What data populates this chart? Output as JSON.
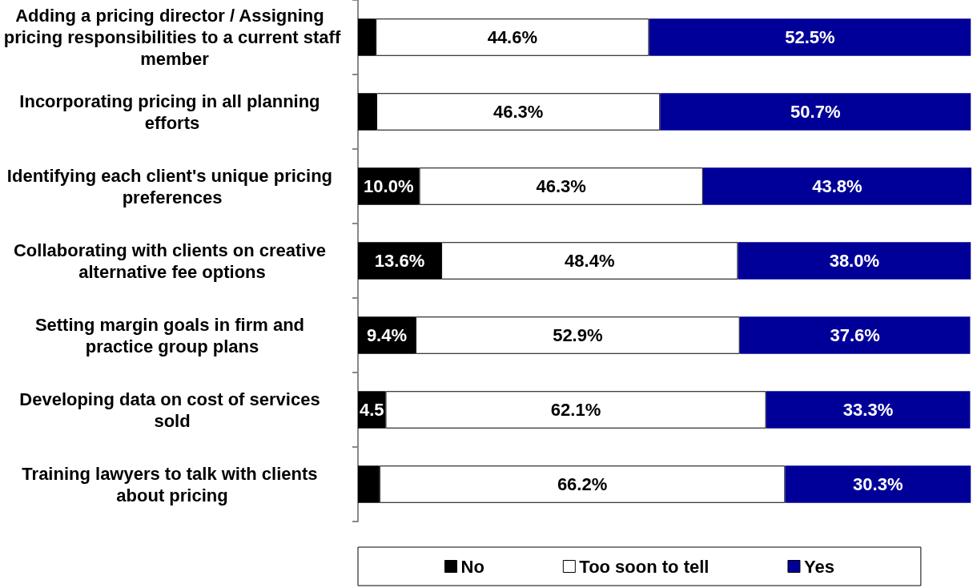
{
  "chart_data": {
    "type": "bar",
    "orientation": "horizontal",
    "stacked": true,
    "categories": [
      "Adding a pricing director / Assigning pricing responsibilities to a current staff member",
      "Incorporating pricing in all planning efforts",
      "Identifying each client's unique pricing preferences",
      "Collaborating with clients on creative alternative fee options",
      "Setting margin goals in firm and practice group plans",
      "Developing data on cost of services sold",
      "Training lawyers to talk with clients about pricing"
    ],
    "series": [
      {
        "name": "No",
        "color": "#000000",
        "values": [
          2.9,
          3.0,
          10.0,
          13.6,
          9.4,
          4.5,
          3.5
        ],
        "value_labels": [
          null,
          null,
          "10.0%",
          "13.6%",
          "9.4%",
          "4.5",
          null
        ]
      },
      {
        "name": "Too soon to tell",
        "color": "#ffffff",
        "values": [
          44.6,
          46.3,
          46.3,
          48.4,
          52.9,
          62.1,
          66.2
        ],
        "value_labels": [
          "44.6%",
          "46.3%",
          "46.3%",
          "48.4%",
          "52.9%",
          "62.1%",
          "66.2%"
        ]
      },
      {
        "name": "Yes",
        "color": "#000099",
        "values": [
          52.5,
          50.7,
          43.8,
          38.0,
          37.6,
          33.3,
          30.3
        ],
        "value_labels": [
          "52.5%",
          "50.7%",
          "43.8%",
          "38.0%",
          "37.6%",
          "33.3%",
          "30.3%"
        ]
      }
    ],
    "tick_labels": "y",
    "grid": false,
    "legend": "bottom"
  }
}
